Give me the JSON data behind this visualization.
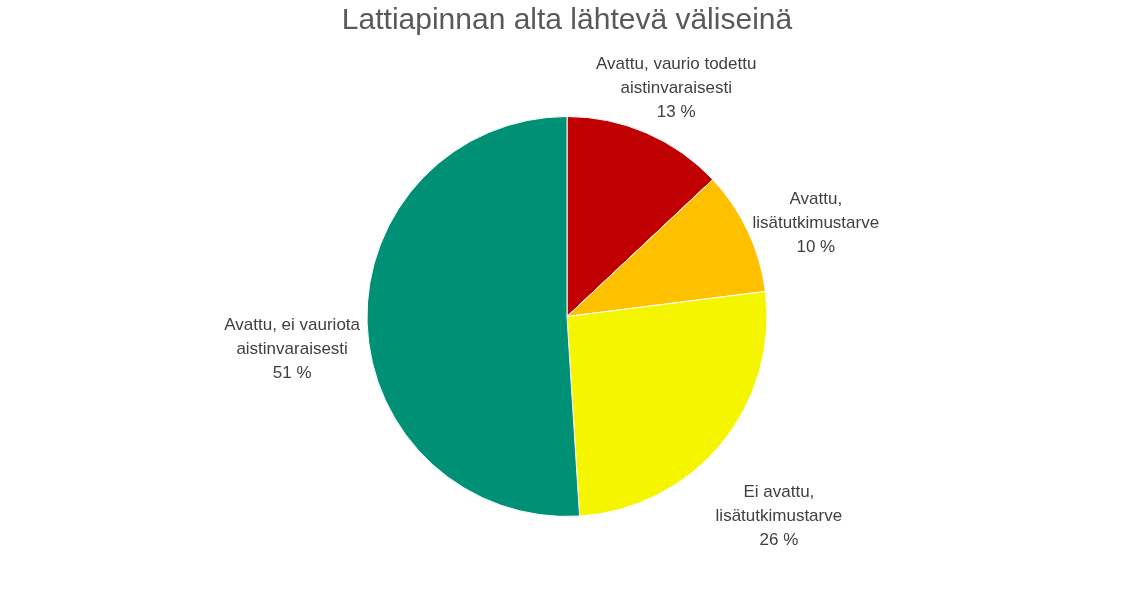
{
  "chart_data": {
    "type": "pie",
    "title": "Lattiapinnan alta lähtevä väliseinä",
    "categories": [
      "Avattu, vaurio todettu aistinvaraisesti",
      "Avattu, lisätutkimustarve",
      "Ei avattu, lisätutkimustarve",
      "Avattu, ei vauriota aistinvaraisesti"
    ],
    "values": [
      13,
      10,
      26,
      51
    ],
    "value_labels": [
      "13 %",
      "10 %",
      "26 %",
      "51 %"
    ],
    "colors": [
      "#c00000",
      "#ffc000",
      "#f5f500",
      "#009076"
    ],
    "legend": false
  }
}
